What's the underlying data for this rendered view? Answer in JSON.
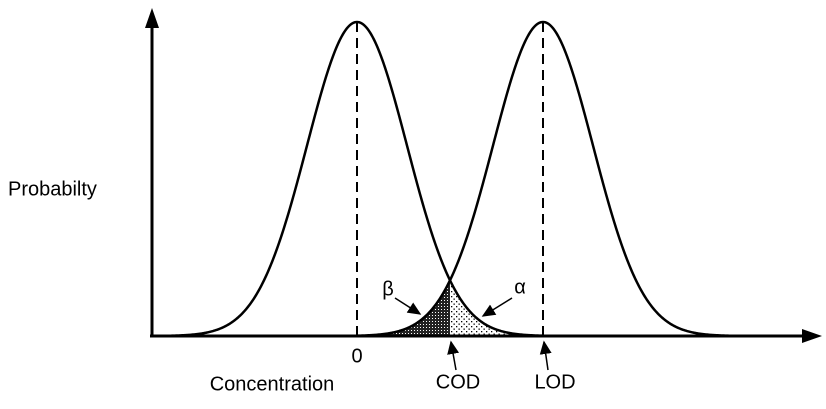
{
  "axis_labels": {
    "y": "Probabilty",
    "x": "Concentration"
  },
  "markers": {
    "zero": "0",
    "cod": "COD",
    "lod": "LOD"
  },
  "regions": {
    "beta": "β",
    "alpha": "α"
  }
}
